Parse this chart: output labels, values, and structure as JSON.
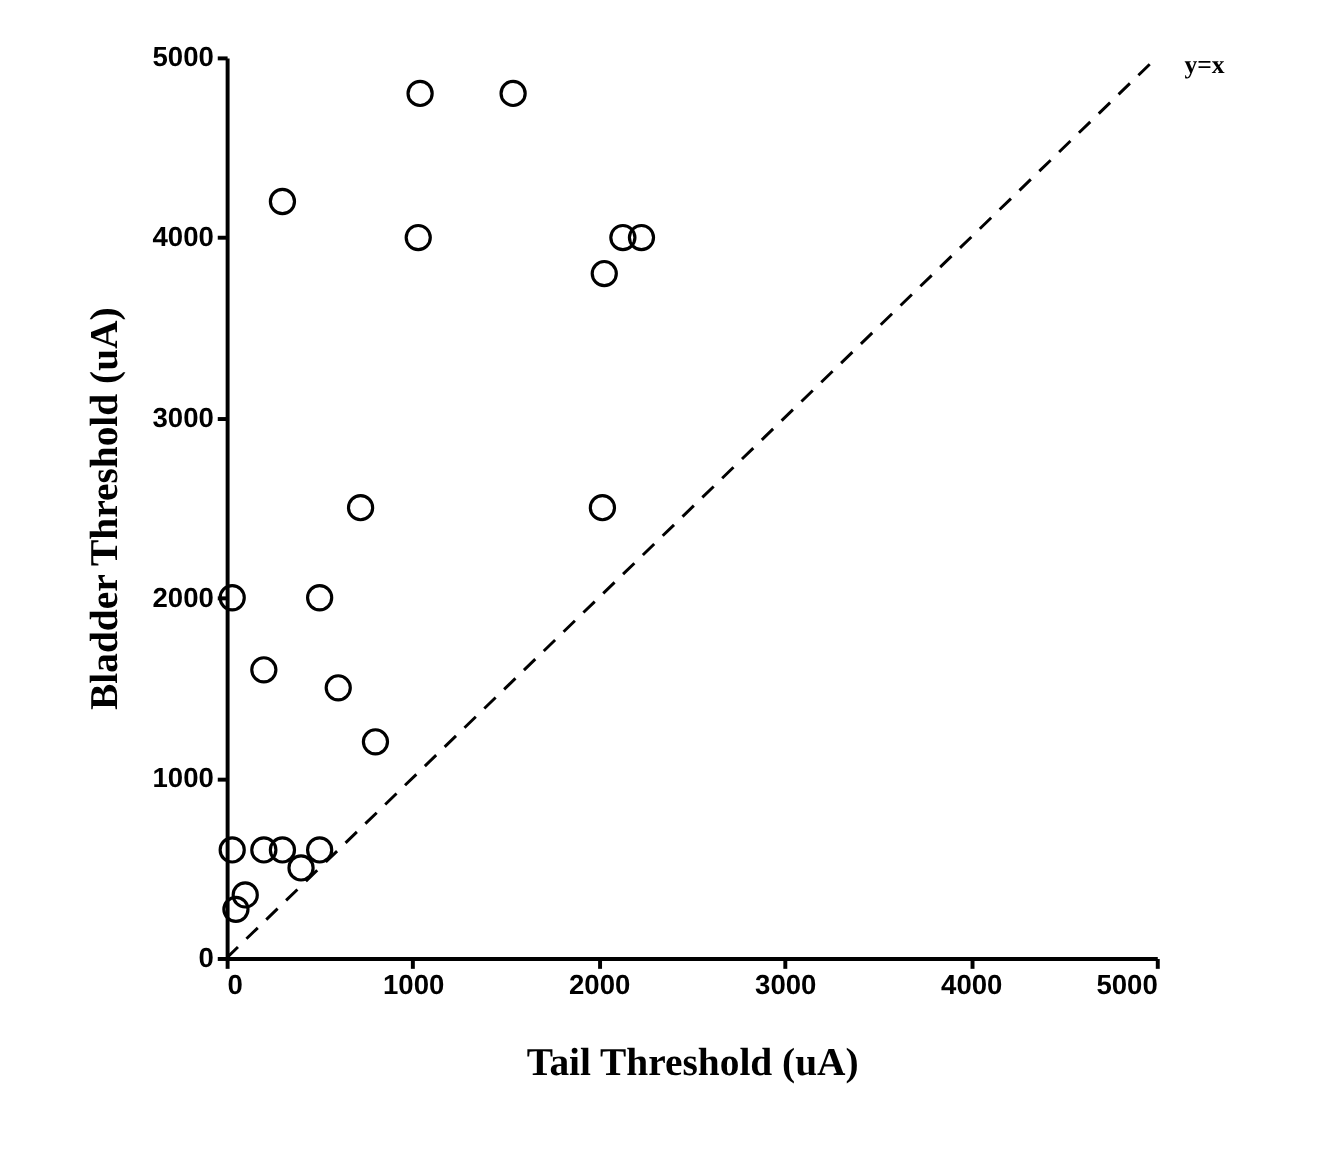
{
  "chart_data": {
    "type": "scatter",
    "xlabel": "Tail Threshold (uA)",
    "ylabel": "Bladder Threshold (uA)",
    "xlim": [
      0,
      5000
    ],
    "ylim": [
      0,
      5000
    ],
    "xticks": [
      0,
      1000,
      2000,
      3000,
      4000,
      5000
    ],
    "yticks": [
      0,
      1000,
      2000,
      3000,
      4000,
      5000
    ],
    "grid": false,
    "marker": "circle",
    "series": [
      {
        "color": "#000000",
        "x": [
          1040,
          1540,
          300,
          1030,
          2130,
          2230,
          2030,
          720,
          2020,
          30,
          500,
          200,
          600,
          800,
          30,
          200,
          300,
          500,
          400,
          100,
          50
        ],
        "values": [
          4800,
          4800,
          4200,
          4000,
          4000,
          4000,
          3800,
          2500,
          2500,
          2000,
          2000,
          1600,
          1500,
          1200,
          600,
          600,
          600,
          600,
          500,
          350,
          270
        ]
      },
      {
        "type": "line",
        "name": "y=x",
        "color": "#000000",
        "line_style": "dashed",
        "marker": "none",
        "x": [
          0,
          5000
        ],
        "values": [
          0,
          5000
        ]
      }
    ]
  }
}
